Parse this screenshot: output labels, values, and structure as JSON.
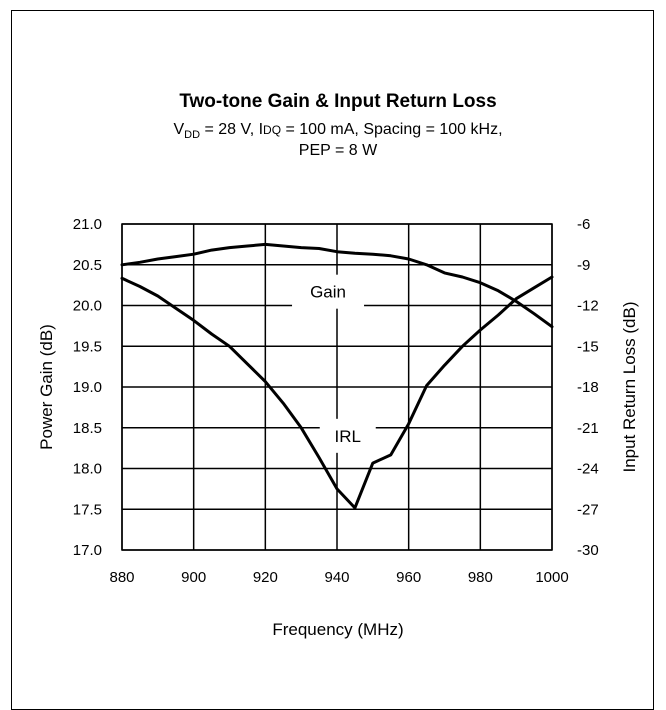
{
  "chart_data": {
    "type": "line",
    "title": "Two-tone Gain & Input Return Loss",
    "subtitle": {
      "line1": {
        "vdd_main": "V",
        "vdd_sub": "DD",
        "rest": " = 28 V, I",
        "idq_small": "DQ",
        "rest2": " = 100  mA, Spacing = 100 kHz,"
      },
      "line2": "PEP = 8 W"
    },
    "xlabel": "Frequency (MHz)",
    "ylabel_left": "Power Gain (dB)",
    "ylabel_right": "Input Return Loss (dB)",
    "xlim": [
      880,
      1000
    ],
    "ylim_left": [
      17.0,
      21.0
    ],
    "ylim_right": [
      -30,
      -6
    ],
    "x_ticks": [
      "880",
      "900",
      "920",
      "940",
      "960",
      "980",
      "1000"
    ],
    "y_ticks_left": [
      "17.0",
      "17.5",
      "18.0",
      "18.5",
      "19.0",
      "19.5",
      "20.0",
      "20.5",
      "21.0"
    ],
    "y_ticks_right": [
      "-30",
      "-27",
      "-24",
      "-21",
      "-18",
      "-15",
      "-12",
      "-9",
      "-6"
    ],
    "grid": true,
    "annotations": {
      "gain": "Gain",
      "irl": "IRL"
    },
    "series": [
      {
        "name": "Gain",
        "axis": "left",
        "x": [
          880,
          885,
          890,
          895,
          900,
          905,
          910,
          915,
          920,
          925,
          930,
          935,
          940,
          945,
          950,
          955,
          960,
          965,
          970,
          975,
          980,
          985,
          990,
          995,
          1000
        ],
        "y": [
          20.5,
          20.53,
          20.57,
          20.6,
          20.63,
          20.68,
          20.71,
          20.73,
          20.75,
          20.73,
          20.71,
          20.7,
          20.66,
          20.64,
          20.63,
          20.61,
          20.57,
          20.5,
          20.4,
          20.35,
          20.28,
          20.18,
          20.05,
          19.9,
          19.74
        ]
      },
      {
        "name": "IRL",
        "axis": "right",
        "x": [
          880,
          885,
          890,
          895,
          900,
          905,
          910,
          915,
          920,
          925,
          930,
          935,
          940,
          945,
          950,
          955,
          960,
          965,
          970,
          975,
          980,
          985,
          990,
          995,
          1000
        ],
        "y": [
          -10.0,
          -10.6,
          -11.3,
          -12.2,
          -13.1,
          -14.1,
          -15.0,
          -16.3,
          -17.6,
          -19.2,
          -21.0,
          -23.2,
          -25.5,
          -26.9,
          -23.6,
          -23.0,
          -20.7,
          -17.9,
          -16.4,
          -15.0,
          -13.8,
          -12.7,
          -11.5,
          -10.7,
          -9.9
        ]
      }
    ]
  }
}
